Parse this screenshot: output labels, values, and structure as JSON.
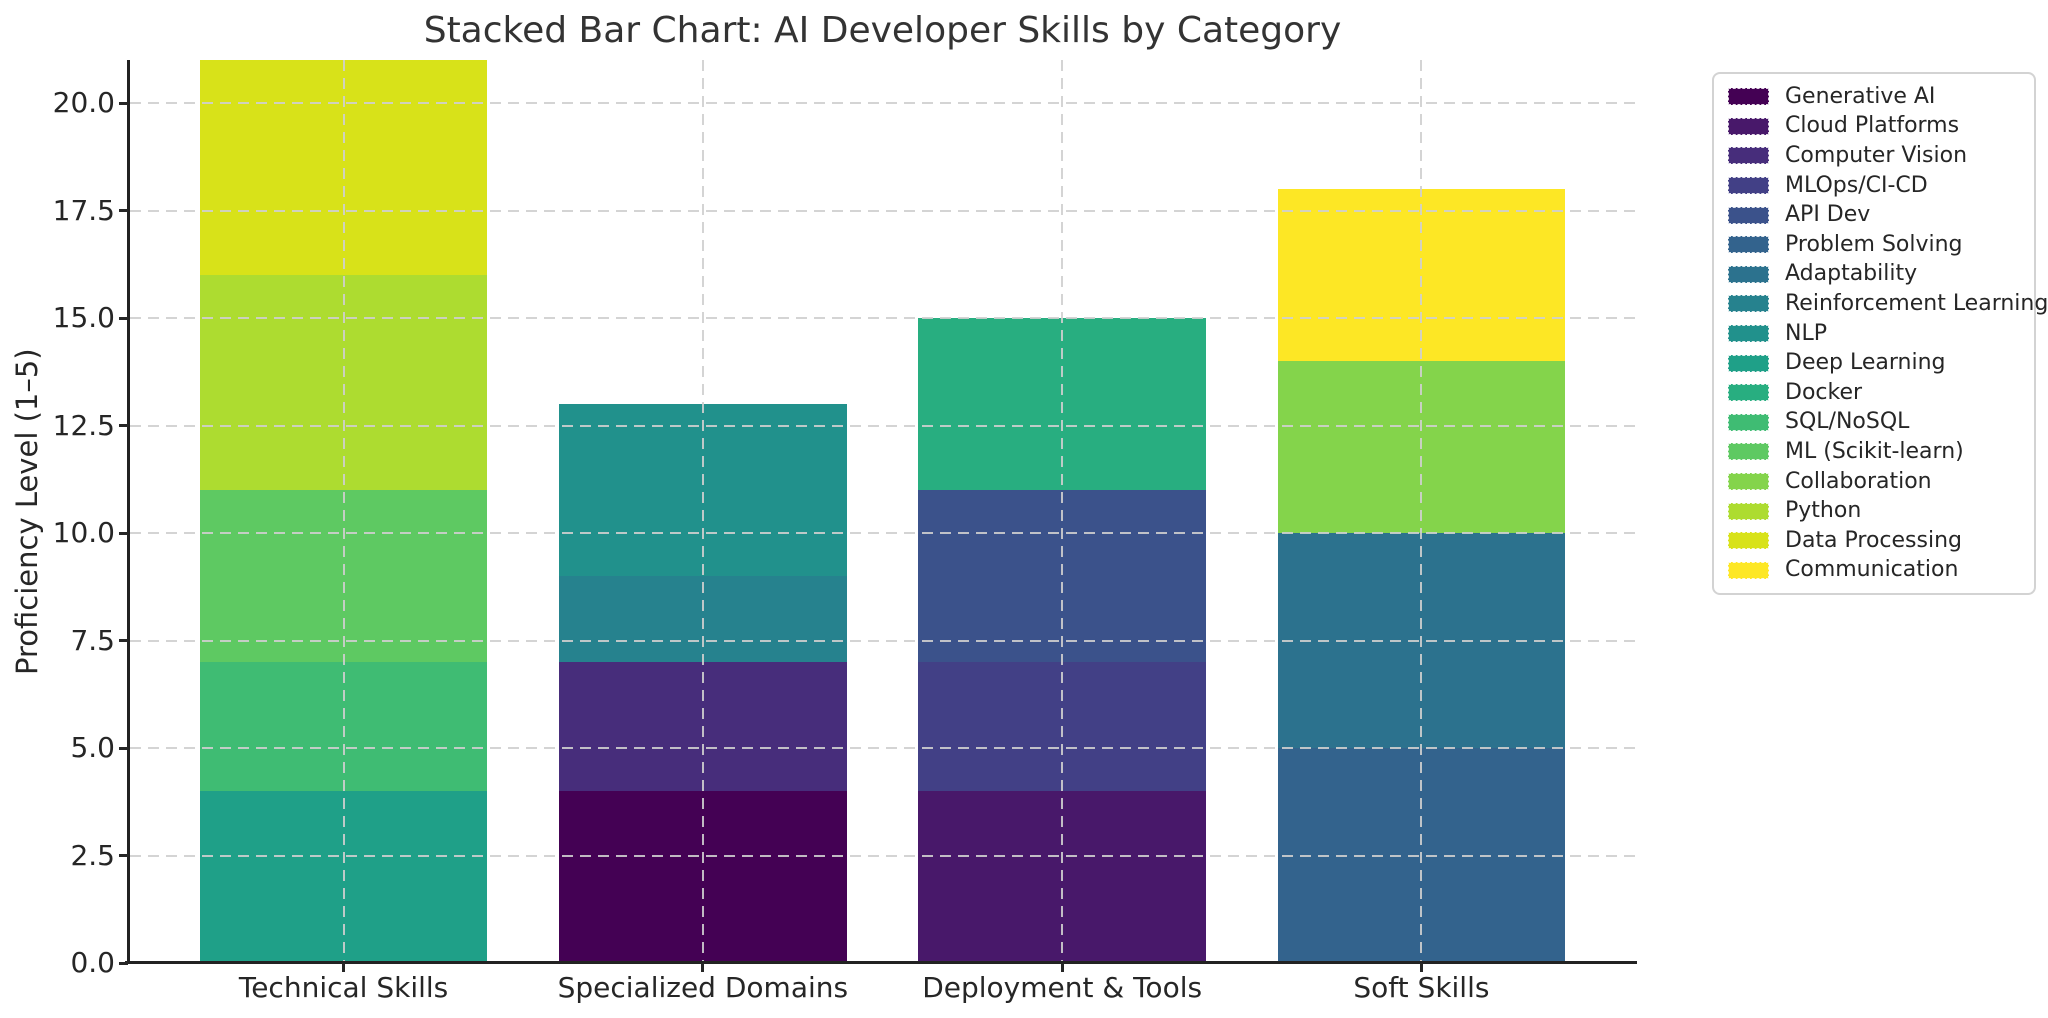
{
  "chart_data": {
    "type": "bar",
    "stacked": true,
    "title": "Stacked Bar Chart: AI Developer Skills by Category",
    "xlabel": "",
    "ylabel": "Proficiency Level (1–5)",
    "ylim": [
      0,
      21
    ],
    "yticks": [
      0.0,
      2.5,
      5.0,
      7.5,
      10.0,
      12.5,
      15.0,
      17.5,
      20.0
    ],
    "grid": {
      "horizontal": true,
      "vertical": true,
      "style": "dashed",
      "color": "#cfcfcf"
    },
    "legend_position": "upper right outside plot",
    "categories": [
      "Technical Skills",
      "Specialized Domains",
      "Deployment & Tools",
      "Soft Skills"
    ],
    "bars": [
      {
        "category": "Technical Skills",
        "total": 21,
        "segments": [
          {
            "skill": "Deep Learning",
            "value": 4,
            "color": "#1fa088"
          },
          {
            "skill": "SQL/NoSQL",
            "value": 3,
            "color": "#3fbc73"
          },
          {
            "skill": "ML (Scikit-learn)",
            "value": 4,
            "color": "#5ec962"
          },
          {
            "skill": "Python",
            "value": 5,
            "color": "#addc30"
          },
          {
            "skill": "Data Processing",
            "value": 5,
            "color": "#d8e219"
          }
        ]
      },
      {
        "category": "Specialized Domains",
        "total": 13,
        "segments": [
          {
            "skill": "Generative AI",
            "value": 4,
            "color": "#440154"
          },
          {
            "skill": "Computer Vision",
            "value": 3,
            "color": "#472d7b"
          },
          {
            "skill": "Reinforcement Learning",
            "value": 2,
            "color": "#26828e"
          },
          {
            "skill": "NLP",
            "value": 4,
            "color": "#21918c"
          }
        ]
      },
      {
        "category": "Deployment & Tools",
        "total": 15,
        "segments": [
          {
            "skill": "Cloud Platforms",
            "value": 4,
            "color": "#48186a"
          },
          {
            "skill": "MLOps/CI-CD",
            "value": 3,
            "color": "#424086"
          },
          {
            "skill": "API Dev",
            "value": 4,
            "color": "#3b528b"
          },
          {
            "skill": "Docker",
            "value": 4,
            "color": "#28ae80"
          }
        ]
      },
      {
        "category": "Soft Skills",
        "total": 18,
        "segments": [
          {
            "skill": "Problem Solving",
            "value": 5,
            "color": "#33638d"
          },
          {
            "skill": "Adaptability",
            "value": 5,
            "color": "#2c728e"
          },
          {
            "skill": "Collaboration",
            "value": 4,
            "color": "#84d44b"
          },
          {
            "skill": "Communication",
            "value": 4,
            "color": "#fde725"
          }
        ]
      }
    ],
    "legend": [
      {
        "label": "Generative AI",
        "color": "#440154"
      },
      {
        "label": "Cloud Platforms",
        "color": "#48186a"
      },
      {
        "label": "Computer Vision",
        "color": "#472d7b"
      },
      {
        "label": "MLOps/CI-CD",
        "color": "#424086"
      },
      {
        "label": "API Dev",
        "color": "#3b528b"
      },
      {
        "label": "Problem Solving",
        "color": "#33638d"
      },
      {
        "label": "Adaptability",
        "color": "#2c728e"
      },
      {
        "label": "Reinforcement Learning",
        "color": "#26828e"
      },
      {
        "label": "NLP",
        "color": "#21918c"
      },
      {
        "label": "Deep Learning",
        "color": "#1fa088"
      },
      {
        "label": "Docker",
        "color": "#28ae80"
      },
      {
        "label": "SQL/NoSQL",
        "color": "#3fbc73"
      },
      {
        "label": "ML (Scikit-learn)",
        "color": "#5ec962"
      },
      {
        "label": "Collaboration",
        "color": "#84d44b"
      },
      {
        "label": "Python",
        "color": "#addc30"
      },
      {
        "label": "Data Processing",
        "color": "#d8e219"
      },
      {
        "label": "Communication",
        "color": "#fde725"
      }
    ]
  }
}
